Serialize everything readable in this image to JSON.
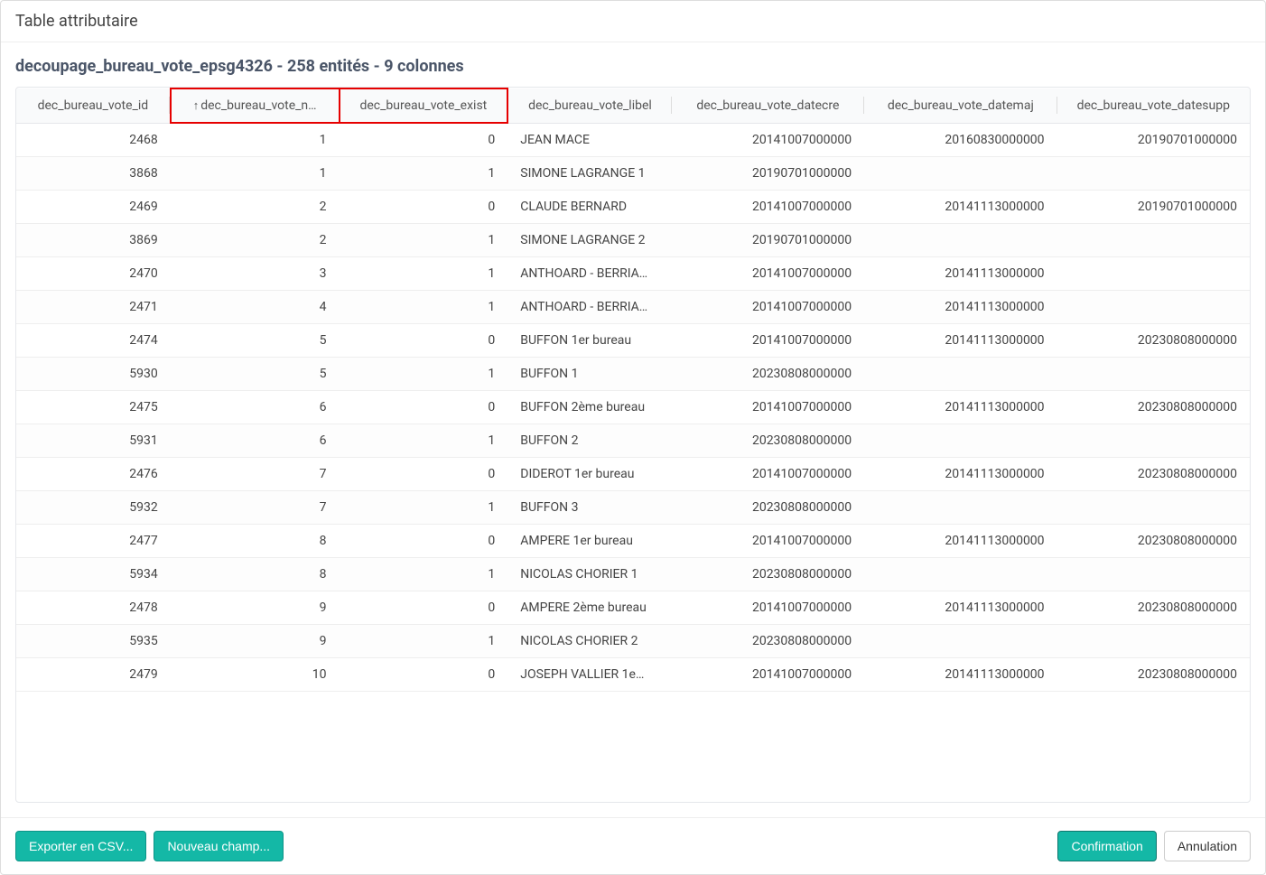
{
  "window": {
    "title": "Table attributaire"
  },
  "subtitle": "decoupage_bureau_vote_epsg4326 - 258 entités - 9 colonnes",
  "columns": [
    {
      "key": "id",
      "label": "dec_bureau_vote_id",
      "align": "right",
      "highlight": false,
      "sort": null
    },
    {
      "key": "n",
      "label": "dec_bureau_vote_n…",
      "align": "right",
      "highlight": true,
      "sort": "asc"
    },
    {
      "key": "exist",
      "label": "dec_bureau_vote_exist",
      "align": "right",
      "highlight": true,
      "sort": null
    },
    {
      "key": "libel",
      "label": "dec_bureau_vote_libel",
      "align": "left",
      "highlight": false,
      "sort": null
    },
    {
      "key": "datecre",
      "label": "dec_bureau_vote_datecre",
      "align": "right",
      "highlight": false,
      "sort": null
    },
    {
      "key": "datemaj",
      "label": "dec_bureau_vote_datemaj",
      "align": "right",
      "highlight": false,
      "sort": null
    },
    {
      "key": "datesupp",
      "label": "dec_bureau_vote_datesupp",
      "align": "right",
      "highlight": false,
      "sort": null
    }
  ],
  "rows": [
    {
      "id": "2468",
      "n": "1",
      "exist": "0",
      "libel": "JEAN MACE",
      "datecre": "20141007000000",
      "datemaj": "20160830000000",
      "datesupp": "20190701000000"
    },
    {
      "id": "3868",
      "n": "1",
      "exist": "1",
      "libel": "SIMONE LAGRANGE 1",
      "datecre": "20190701000000",
      "datemaj": "",
      "datesupp": ""
    },
    {
      "id": "2469",
      "n": "2",
      "exist": "0",
      "libel": "CLAUDE BERNARD",
      "datecre": "20141007000000",
      "datemaj": "20141113000000",
      "datesupp": "20190701000000"
    },
    {
      "id": "3869",
      "n": "2",
      "exist": "1",
      "libel": "SIMONE LAGRANGE 2",
      "datecre": "20190701000000",
      "datemaj": "",
      "datesupp": ""
    },
    {
      "id": "2470",
      "n": "3",
      "exist": "1",
      "libel": "ANTHOARD - BERRIA…",
      "datecre": "20141007000000",
      "datemaj": "20141113000000",
      "datesupp": ""
    },
    {
      "id": "2471",
      "n": "4",
      "exist": "1",
      "libel": "ANTHOARD - BERRIA…",
      "datecre": "20141007000000",
      "datemaj": "20141113000000",
      "datesupp": ""
    },
    {
      "id": "2474",
      "n": "5",
      "exist": "0",
      "libel": "BUFFON 1er bureau",
      "datecre": "20141007000000",
      "datemaj": "20141113000000",
      "datesupp": "20230808000000"
    },
    {
      "id": "5930",
      "n": "5",
      "exist": "1",
      "libel": "BUFFON 1",
      "datecre": "20230808000000",
      "datemaj": "",
      "datesupp": ""
    },
    {
      "id": "2475",
      "n": "6",
      "exist": "0",
      "libel": "BUFFON 2ème bureau",
      "datecre": "20141007000000",
      "datemaj": "20141113000000",
      "datesupp": "20230808000000"
    },
    {
      "id": "5931",
      "n": "6",
      "exist": "1",
      "libel": "BUFFON 2",
      "datecre": "20230808000000",
      "datemaj": "",
      "datesupp": ""
    },
    {
      "id": "2476",
      "n": "7",
      "exist": "0",
      "libel": "DIDEROT 1er bureau",
      "datecre": "20141007000000",
      "datemaj": "20141113000000",
      "datesupp": "20230808000000"
    },
    {
      "id": "5932",
      "n": "7",
      "exist": "1",
      "libel": "BUFFON 3",
      "datecre": "20230808000000",
      "datemaj": "",
      "datesupp": ""
    },
    {
      "id": "2477",
      "n": "8",
      "exist": "0",
      "libel": "AMPERE 1er bureau",
      "datecre": "20141007000000",
      "datemaj": "20141113000000",
      "datesupp": "20230808000000"
    },
    {
      "id": "5934",
      "n": "8",
      "exist": "1",
      "libel": "NICOLAS CHORIER 1",
      "datecre": "20230808000000",
      "datemaj": "",
      "datesupp": ""
    },
    {
      "id": "2478",
      "n": "9",
      "exist": "0",
      "libel": "AMPERE 2ème bureau",
      "datecre": "20141007000000",
      "datemaj": "20141113000000",
      "datesupp": "20230808000000"
    },
    {
      "id": "5935",
      "n": "9",
      "exist": "1",
      "libel": "NICOLAS CHORIER 2",
      "datecre": "20230808000000",
      "datemaj": "",
      "datesupp": ""
    },
    {
      "id": "2479",
      "n": "10",
      "exist": "0",
      "libel": "JOSEPH VALLIER 1e…",
      "datecre": "20141007000000",
      "datemaj": "20141113000000",
      "datesupp": "20230808000000"
    }
  ],
  "footer": {
    "export_label": "Exporter en CSV...",
    "new_field_label": "Nouveau champ...",
    "confirm_label": "Confirmation",
    "cancel_label": "Annulation"
  },
  "colors": {
    "teal": "#14b8a6",
    "highlight_border": "#e60000",
    "border": "#e5e7eb",
    "text": "#444"
  }
}
